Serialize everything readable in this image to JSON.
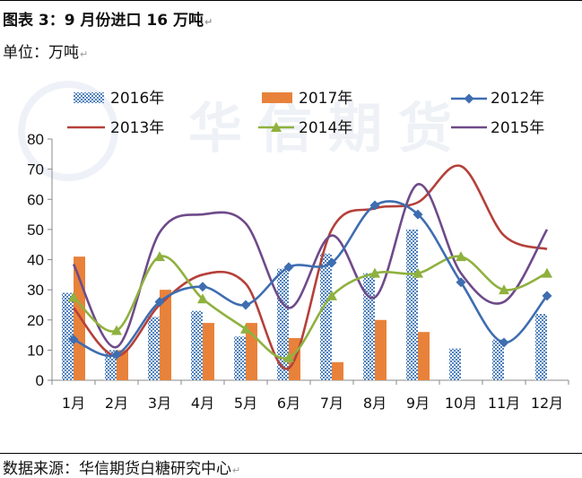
{
  "header": {
    "title": "图表 3：9 月份进口 16 万吨",
    "unit": "单位：万吨"
  },
  "footer": {
    "source": "数据来源：华信期货白糖研究中心"
  },
  "watermark": {
    "text": "华信期货"
  },
  "colors": {
    "2016": "#4f81bd",
    "2017": "#e8823a",
    "2012": "#3e6db0",
    "2013": "#b5403a",
    "2014": "#8fb13f",
    "2015": "#6e4a8a",
    "axis": "#888888"
  },
  "chart_data": {
    "type": "bar",
    "categories": [
      "1月",
      "2月",
      "3月",
      "4月",
      "5月",
      "6月",
      "7月",
      "8月",
      "9月",
      "10月",
      "11月",
      "12月"
    ],
    "ylim": [
      0,
      80
    ],
    "yticks": [
      0,
      10,
      20,
      30,
      40,
      50,
      60,
      70,
      80
    ],
    "grid": false,
    "legend_placement": "top",
    "bar_series": [
      {
        "name": "2016年",
        "pattern": "checker",
        "values": [
          29,
          10,
          21,
          23,
          14.5,
          37,
          42,
          35.5,
          50,
          10.5,
          13.5,
          22
        ]
      },
      {
        "name": "2017年",
        "pattern": "solid",
        "values": [
          41,
          10,
          30,
          19,
          19,
          14,
          6,
          20,
          16,
          null,
          null,
          null
        ]
      }
    ],
    "line_series": [
      {
        "name": "2012年",
        "marker": "diamond",
        "values": [
          13.5,
          8.5,
          26,
          31,
          25,
          37.5,
          39,
          58,
          55,
          32.5,
          12.5,
          28
        ]
      },
      {
        "name": "2013年",
        "marker": "none",
        "values": [
          24,
          8,
          25,
          35,
          32,
          4,
          50,
          57,
          59,
          71,
          48,
          43.5
        ]
      },
      {
        "name": "2014年",
        "marker": "triangle",
        "values": [
          27.5,
          16.5,
          41,
          27,
          17,
          7.5,
          28,
          35.5,
          35.5,
          41,
          30,
          35.5
        ]
      },
      {
        "name": "2015年",
        "marker": "none",
        "values": [
          38.5,
          11,
          49,
          55,
          52,
          24,
          48,
          27.5,
          65,
          35.5,
          26,
          50
        ]
      }
    ]
  }
}
